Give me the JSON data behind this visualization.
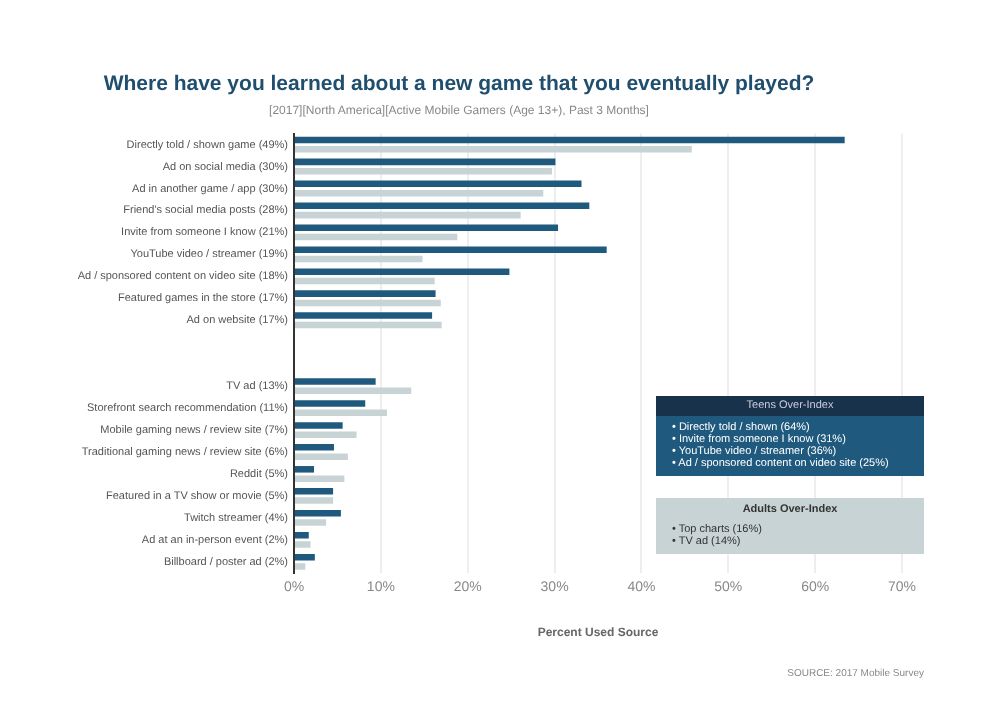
{
  "chart_data": {
    "type": "bar",
    "orientation": "horizontal",
    "title": "Where have you learned about a new game that you eventually played?",
    "subtitle": "[2017][North America][Active Mobile Gamers (Age 13+), Past 3 Months]",
    "categories": [
      "Directly told / shown game (49%)",
      "Ad on social media (30%)",
      "Ad in another game / app (30%)",
      "Friend's social media posts (28%)",
      "Invite from someone I know (21%)",
      "YouTube video / streamer (19%)",
      "Ad / sponsored content on video site (18%)",
      "Featured games in the store (17%)",
      "Ad on website (17%)",
      null,
      null,
      "TV ad (13%)",
      "Storefront search recommendation (11%)",
      "Mobile gaming news / review site (7%)",
      "Traditional gaming news / review site (6%)",
      "Reddit (5%)",
      "Featured in a TV show or movie (5%)",
      "Twitch streamer (4%)",
      "Ad at an in-person event (2%)",
      "Billboard / poster ad (2%)"
    ],
    "series": [
      {
        "color": "#1f5a7e",
        "values": [
          63.4,
          30.1,
          33.1,
          34,
          30.4,
          36,
          24.8,
          16.3,
          15.9,
          null,
          null,
          9.4,
          8.2,
          5.6,
          4.6,
          2.3,
          4.5,
          5.4,
          1.7,
          2.4
        ]
      },
      {
        "color": "#c8d3d6",
        "values": [
          45.8,
          29.7,
          28.7,
          26.1,
          18.8,
          14.8,
          16.2,
          16.9,
          17,
          null,
          null,
          13.5,
          10.7,
          7.2,
          6.2,
          5.8,
          4.5,
          3.7,
          1.9,
          1.3
        ]
      }
    ],
    "xlim": [
      0,
      70
    ],
    "xticks": [
      {
        "value": 0,
        "label": "0%"
      },
      {
        "value": 10,
        "label": "10%"
      },
      {
        "value": 20,
        "label": "20%"
      },
      {
        "value": 30,
        "label": "30%"
      },
      {
        "value": 40,
        "label": "40%"
      },
      {
        "value": 50,
        "label": "50%"
      },
      {
        "value": 60,
        "label": "60%"
      },
      {
        "value": 70,
        "label": "70%"
      }
    ],
    "xlabel": "Percent Used Source",
    "grid": "x",
    "legend": false,
    "annotations": [
      "Teens Over-Index",
      "• Directly told / shown (64%)",
      "• Invite from someone I know (31%)",
      "• YouTube video / streamer (36%)",
      "• Ad / sponsored content on video site (25%)",
      "Adults Over-Index",
      "• Top charts (16%)",
      "• TV ad (14%)",
      "SOURCE: 2017 Mobile Survey"
    ]
  }
}
